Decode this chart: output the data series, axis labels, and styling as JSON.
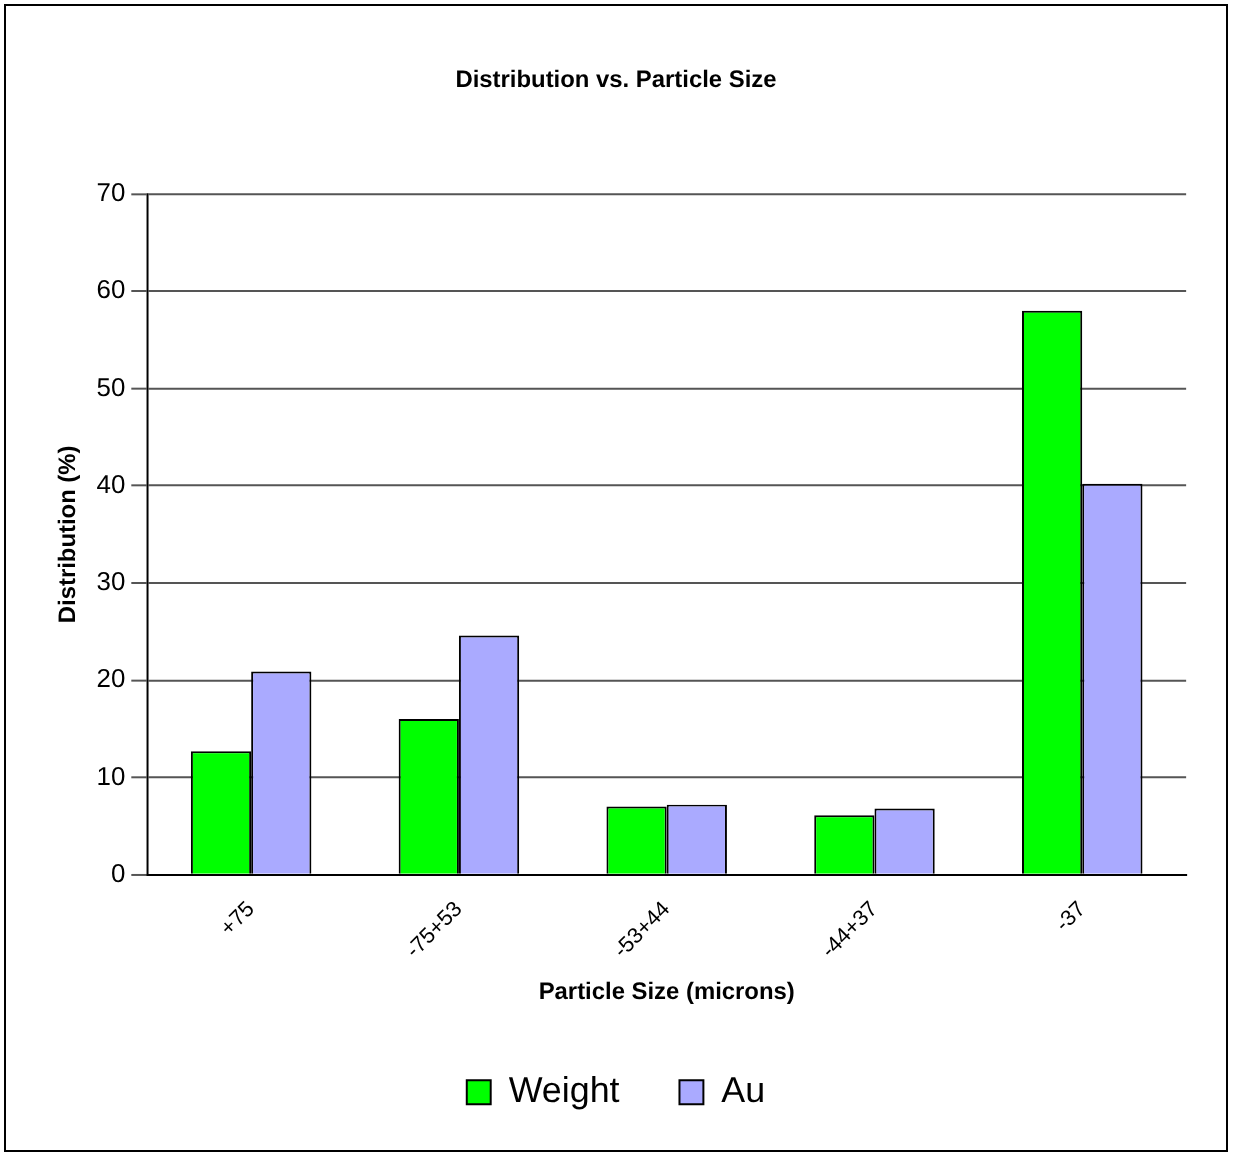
{
  "chart_data": {
    "type": "bar",
    "title": "Distribution vs. Particle Size",
    "xlabel": "Particle Size (microns)",
    "ylabel": "Distribution (%)",
    "categories": [
      "+75",
      "-75+53",
      "-53+44",
      "-44+37",
      "-37"
    ],
    "series": [
      {
        "name": "Weight",
        "color": "#00ff00",
        "values": [
          12.7,
          16.0,
          7.0,
          6.1,
          58.0
        ]
      },
      {
        "name": "Au",
        "color": "#aaaaff",
        "values": [
          20.9,
          24.6,
          7.2,
          6.8,
          40.2
        ]
      }
    ],
    "ylim": [
      0,
      70
    ],
    "yticks": [
      0,
      10,
      20,
      30,
      40,
      50,
      60,
      70
    ],
    "grid": "y",
    "legend": "bottom"
  }
}
